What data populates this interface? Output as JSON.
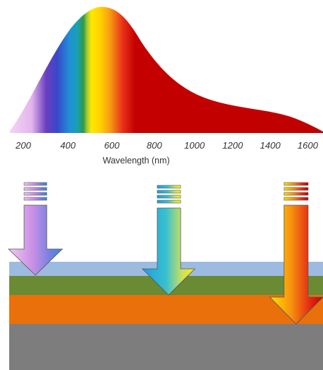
{
  "axis": {
    "ticks": [
      "200",
      "400",
      "600",
      "800",
      "1000",
      "1200",
      "1400",
      "1600"
    ],
    "label": "Wavelength (nm)"
  },
  "colors": {
    "layer_top": "#9dbbe0",
    "layer_green": "#6a8a34",
    "layer_orange": "#e9700a",
    "layer_gray": "#7d7d7d",
    "curve_red": "#c00000"
  }
}
